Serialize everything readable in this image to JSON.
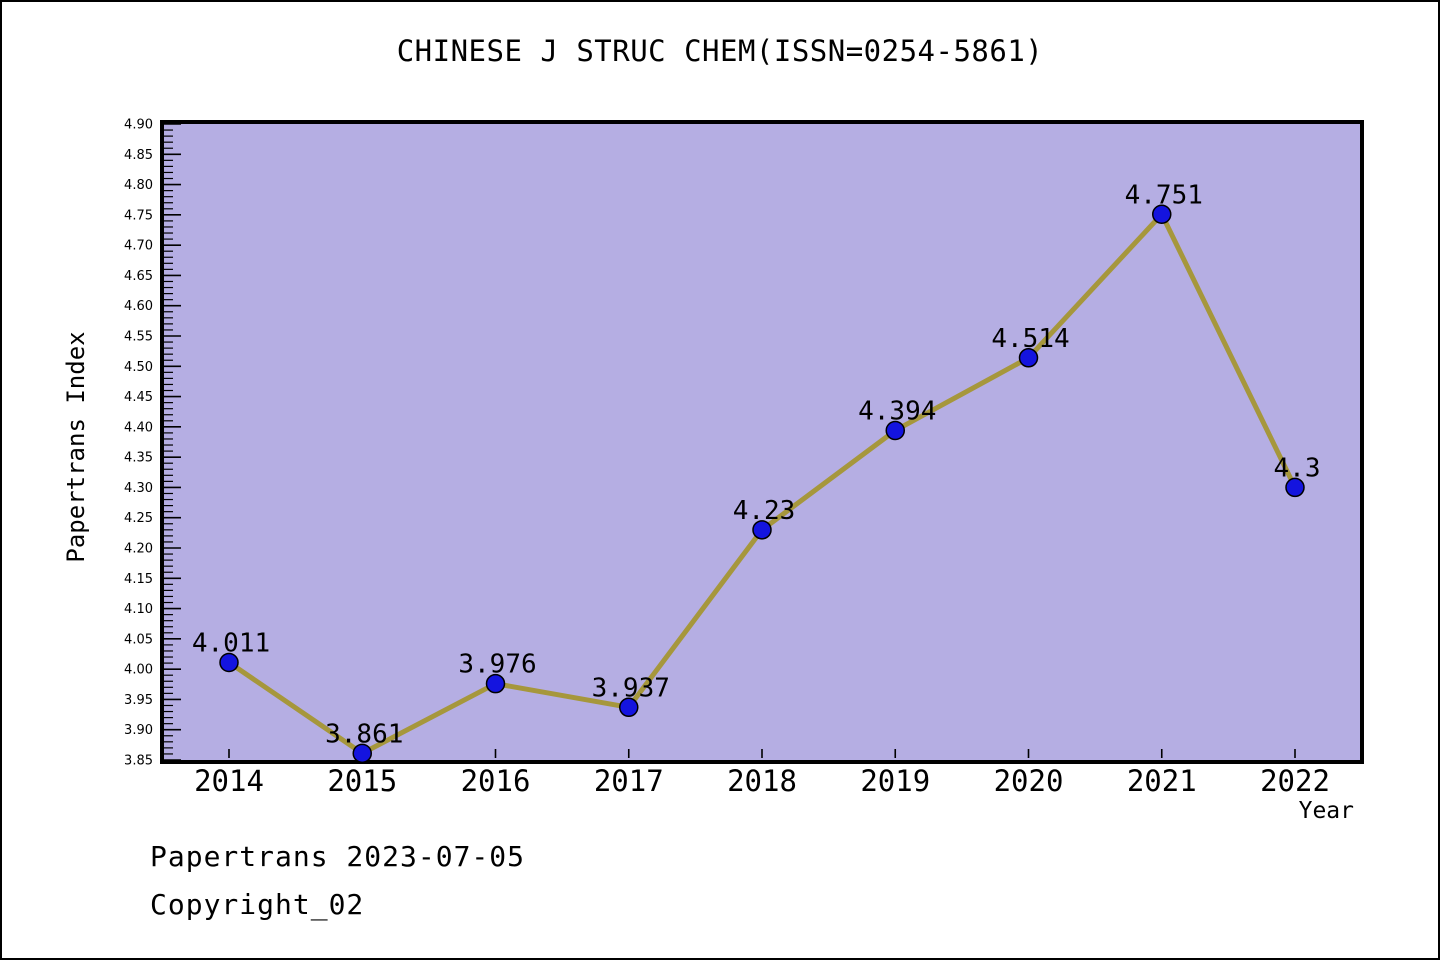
{
  "footer": {
    "line1": "Papertrans 2023-07-05",
    "line2": "Copyright_02"
  },
  "chart_data": {
    "type": "line",
    "title": "CHINESE J STRUC CHEM(ISSN=0254-5861)",
    "xlabel": "Year",
    "ylabel": "Papertrans Index",
    "categories": [
      "2014",
      "2015",
      "2016",
      "2017",
      "2018",
      "2019",
      "2020",
      "2021",
      "2022"
    ],
    "values": [
      4.011,
      3.861,
      3.976,
      3.937,
      4.23,
      4.394,
      4.514,
      4.751,
      4.3
    ],
    "point_labels": [
      "4.011",
      "3.861",
      "3.976",
      "3.937",
      "4.23",
      "4.394",
      "4.514",
      "4.751",
      "4.3"
    ],
    "ylim": [
      3.85,
      4.9
    ],
    "y_major_step": 0.05,
    "y_minor_step": 0.01,
    "y_tick_labels": [
      "3.85",
      "3.90",
      "3.95",
      "4.00",
      "4.05",
      "4.10",
      "4.15",
      "4.20",
      "4.25",
      "4.30",
      "4.35",
      "4.40",
      "4.45",
      "4.50",
      "4.55",
      "4.60",
      "4.65",
      "4.70",
      "4.75",
      "4.80",
      "4.85",
      "4.90"
    ],
    "grid": false,
    "legend": "none",
    "colors": {
      "plot_bg": "#b5aee3",
      "line": "#a6973c",
      "marker_fill": "#1414df",
      "marker_edge": "#000000",
      "frame": "#000000",
      "text": "#000000"
    }
  }
}
